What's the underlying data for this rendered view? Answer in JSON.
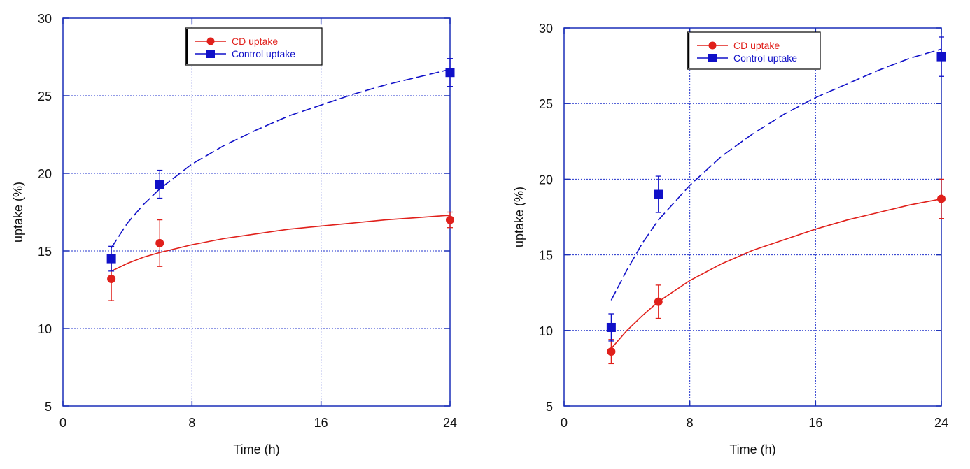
{
  "chart_data": [
    {
      "type": "scatter",
      "title": "",
      "xlabel": "Time (h)",
      "ylabel": "uptake (%)",
      "xlim": [
        0,
        24
      ],
      "ylim": [
        5,
        30
      ],
      "xticks": [
        0,
        8,
        16,
        24
      ],
      "yticks": [
        5,
        10,
        15,
        20,
        25,
        30
      ],
      "grid": true,
      "legend_position": "top-center",
      "series": [
        {
          "name": "CD uptake",
          "color": "#e0201b",
          "marker": "circle",
          "x": [
            3,
            6,
            24
          ],
          "y": [
            13.2,
            15.5,
            17.0
          ],
          "err": [
            1.4,
            1.5,
            0.5
          ],
          "fit_line": "solid",
          "fit": {
            "x": [
              3,
              4,
              5,
              6,
              8,
              10,
              12,
              14,
              16,
              18,
              20,
              22,
              24
            ],
            "y": [
              13.7,
              14.2,
              14.6,
              14.9,
              15.4,
              15.8,
              16.1,
              16.4,
              16.6,
              16.8,
              17.0,
              17.15,
              17.3
            ]
          }
        },
        {
          "name": "Control uptake",
          "color": "#1010c8",
          "marker": "square",
          "x": [
            3,
            6,
            24
          ],
          "y": [
            14.5,
            19.3,
            26.5
          ],
          "err": [
            0.8,
            0.9,
            0.9
          ],
          "fit_line": "dashed",
          "fit": {
            "x": [
              3,
              4,
              5,
              6,
              8,
              10,
              12,
              14,
              16,
              18,
              20,
              22,
              24
            ],
            "y": [
              15.2,
              16.8,
              18.0,
              19.0,
              20.6,
              21.8,
              22.8,
              23.7,
              24.4,
              25.1,
              25.7,
              26.2,
              26.7
            ]
          }
        }
      ]
    },
    {
      "type": "scatter",
      "title": "",
      "xlabel": "Time (h)",
      "ylabel": "uptake (%)",
      "xlim": [
        0,
        24
      ],
      "ylim": [
        5,
        30
      ],
      "xticks": [
        0,
        8,
        16,
        24
      ],
      "yticks": [
        5,
        10,
        15,
        20,
        25,
        30
      ],
      "grid": true,
      "legend_position": "top-center",
      "series": [
        {
          "name": "CD uptake",
          "color": "#e0201b",
          "marker": "circle",
          "x": [
            3,
            6,
            24
          ],
          "y": [
            8.6,
            11.9,
            18.7
          ],
          "err": [
            0.8,
            1.1,
            1.3
          ],
          "fit_line": "solid",
          "fit": {
            "x": [
              3,
              4,
              5,
              6,
              8,
              10,
              12,
              14,
              16,
              18,
              20,
              22,
              24
            ],
            "y": [
              8.8,
              10.0,
              11.0,
              11.9,
              13.3,
              14.4,
              15.3,
              16.0,
              16.7,
              17.3,
              17.8,
              18.3,
              18.7
            ]
          }
        },
        {
          "name": "Control uptake",
          "color": "#1010c8",
          "marker": "square",
          "x": [
            3,
            6,
            24
          ],
          "y": [
            10.2,
            19.0,
            28.1
          ],
          "err": [
            0.9,
            1.2,
            1.3
          ],
          "fit_line": "dashed",
          "fit": {
            "x": [
              3,
              4,
              5,
              6,
              8,
              10,
              12,
              14,
              16,
              18,
              20,
              22,
              24
            ],
            "y": [
              12.0,
              14.0,
              15.8,
              17.3,
              19.6,
              21.5,
              23.0,
              24.3,
              25.4,
              26.3,
              27.2,
              28.0,
              28.6
            ]
          }
        }
      ]
    }
  ]
}
